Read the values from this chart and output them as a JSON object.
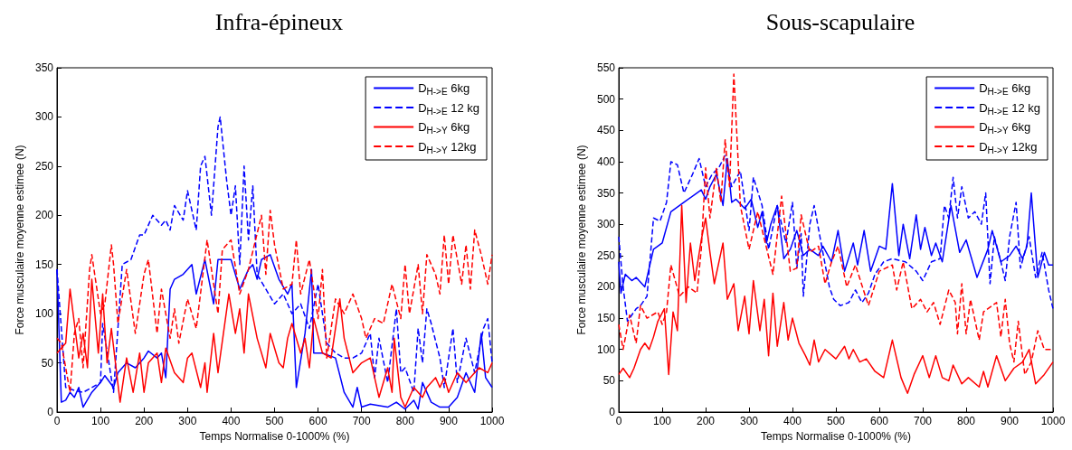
{
  "chart_data": [
    {
      "type": "line",
      "title": "Infra-épineux",
      "xlabel": "Temps Normalise 0-1000% (%)",
      "ylabel": "Force musculaire moyenne estimee (N)",
      "xlim": [
        0,
        1000
      ],
      "xticks": [
        0,
        100,
        200,
        300,
        400,
        500,
        600,
        700,
        800,
        900,
        1000
      ],
      "ylim": [
        0,
        350
      ],
      "yticks": [
        0,
        50,
        100,
        150,
        200,
        250,
        300,
        350
      ],
      "grid": false,
      "legend": "top right",
      "marker": "none",
      "series": [
        {
          "name": "D$_{H->E}$ 6kg",
          "color": "#0000ff",
          "line_style": "solid",
          "x": [
            0,
            10,
            20,
            30,
            40,
            50,
            60,
            80,
            100,
            110,
            130,
            140,
            160,
            180,
            200,
            210,
            230,
            240,
            250,
            260,
            270,
            290,
            310,
            320,
            340,
            360,
            370,
            400,
            420,
            440,
            450,
            460,
            470,
            490,
            510,
            530,
            540,
            550,
            570,
            585,
            590,
            610,
            640,
            660,
            680,
            690,
            700,
            720,
            760,
            780,
            800,
            820,
            830,
            840,
            860,
            880,
            900,
            920,
            940,
            960,
            975,
            985,
            1000
          ],
          "values": [
            145,
            10,
            12,
            20,
            15,
            25,
            5,
            20,
            30,
            37,
            25,
            40,
            50,
            45,
            55,
            62,
            55,
            60,
            35,
            125,
            135,
            140,
            150,
            120,
            155,
            110,
            155,
            155,
            125,
            145,
            150,
            135,
            155,
            160,
            135,
            120,
            130,
            25,
            80,
            145,
            60,
            60,
            55,
            20,
            5,
            25,
            5,
            8,
            5,
            10,
            3,
            12,
            3,
            30,
            10,
            5,
            5,
            15,
            40,
            20,
            80,
            35,
            25
          ]
        },
        {
          "name": "D$_{H->E}$ 12 kg",
          "color": "#0000ff",
          "line_style": "dashed",
          "x": [
            0,
            20,
            40,
            60,
            80,
            100,
            105,
            130,
            150,
            170,
            190,
            200,
            220,
            240,
            250,
            260,
            270,
            290,
            300,
            320,
            330,
            340,
            355,
            370,
            375,
            390,
            400,
            410,
            420,
            430,
            440,
            450,
            460,
            480,
            500,
            520,
            540,
            560,
            580,
            600,
            620,
            640,
            660,
            680,
            700,
            720,
            730,
            740,
            760,
            780,
            790,
            800,
            820,
            830,
            840,
            850,
            860,
            880,
            890,
            910,
            920,
            940,
            960,
            980,
            990,
            1000
          ],
          "values": [
            145,
            25,
            22,
            20,
            25,
            30,
            90,
            20,
            150,
            155,
            180,
            180,
            200,
            190,
            195,
            185,
            210,
            195,
            225,
            185,
            250,
            260,
            200,
            290,
            300,
            235,
            200,
            230,
            150,
            250,
            175,
            230,
            140,
            125,
            110,
            120,
            100,
            110,
            85,
            130,
            70,
            60,
            55,
            55,
            60,
            80,
            35,
            75,
            30,
            105,
            40,
            45,
            20,
            85,
            50,
            105,
            90,
            55,
            25,
            85,
            30,
            75,
            40,
            85,
            95,
            50
          ]
        },
        {
          "name": "D$_{H->Y}$ 6kg",
          "color": "#ff0000",
          "line_style": "solid",
          "x": [
            0,
            20,
            30,
            40,
            50,
            60,
            70,
            80,
            95,
            105,
            115,
            125,
            145,
            160,
            175,
            190,
            200,
            210,
            230,
            240,
            250,
            270,
            290,
            300,
            310,
            330,
            340,
            345,
            360,
            370,
            395,
            410,
            420,
            430,
            440,
            460,
            480,
            490,
            510,
            520,
            530,
            540,
            560,
            570,
            580,
            590,
            610,
            630,
            650,
            660,
            680,
            700,
            720,
            740,
            760,
            770,
            775,
            790,
            800,
            820,
            840,
            850,
            870,
            880,
            890,
            900,
            920,
            940,
            970,
            990,
            1000
          ],
          "values": [
            60,
            70,
            125,
            90,
            55,
            80,
            45,
            135,
            60,
            120,
            50,
            85,
            10,
            55,
            20,
            60,
            20,
            50,
            60,
            30,
            65,
            40,
            30,
            55,
            60,
            25,
            50,
            20,
            80,
            40,
            120,
            80,
            105,
            60,
            120,
            75,
            45,
            80,
            50,
            45,
            75,
            90,
            60,
            75,
            45,
            95,
            60,
            55,
            115,
            75,
            40,
            50,
            55,
            15,
            45,
            20,
            75,
            15,
            5,
            25,
            15,
            25,
            35,
            25,
            35,
            20,
            40,
            30,
            45,
            40,
            50
          ]
        },
        {
          "name": "D$_{H->Y}$ 12kg",
          "color": "#ff0000",
          "line_style": "dashed",
          "x": [
            0,
            10,
            30,
            40,
            50,
            60,
            75,
            80,
            100,
            110,
            125,
            130,
            140,
            160,
            180,
            200,
            210,
            230,
            240,
            260,
            270,
            280,
            300,
            320,
            345,
            370,
            380,
            400,
            420,
            440,
            470,
            480,
            490,
            500,
            520,
            540,
            550,
            560,
            580,
            600,
            610,
            620,
            640,
            660,
            680,
            700,
            710,
            730,
            750,
            770,
            790,
            800,
            810,
            830,
            840,
            850,
            870,
            880,
            890,
            900,
            910,
            930,
            940,
            950,
            960,
            975,
            990,
            1000
          ],
          "values": [
            75,
            70,
            20,
            80,
            95,
            45,
            145,
            160,
            100,
            110,
            170,
            150,
            90,
            145,
            80,
            140,
            155,
            80,
            125,
            75,
            105,
            70,
            115,
            85,
            175,
            100,
            165,
            175,
            120,
            145,
            200,
            140,
            205,
            170,
            125,
            130,
            175,
            120,
            155,
            95,
            145,
            55,
            115,
            100,
            120,
            95,
            75,
            95,
            90,
            130,
            95,
            150,
            100,
            150,
            100,
            160,
            140,
            120,
            180,
            130,
            180,
            130,
            170,
            125,
            185,
            160,
            130,
            160
          ]
        }
      ]
    },
    {
      "type": "line",
      "title": "Sous-scapulaire",
      "xlabel": "Temps Normalise 0-1000% (%)",
      "ylabel": "Force musculaire moyenne estimee (N)",
      "xlim": [
        0,
        1000
      ],
      "xticks": [
        0,
        100,
        200,
        300,
        400,
        500,
        600,
        700,
        800,
        900,
        1000
      ],
      "ylim": [
        0,
        550
      ],
      "yticks": [
        0,
        50,
        100,
        150,
        200,
        250,
        300,
        350,
        400,
        450,
        500,
        550
      ],
      "grid": false,
      "legend": "top right",
      "marker": "none",
      "series": [
        {
          "name": "D$_{H->E}$ 6kg",
          "color": "#0000ff",
          "line_style": "solid",
          "x": [
            0,
            5,
            15,
            30,
            40,
            60,
            80,
            100,
            120,
            140,
            150,
            180,
            190,
            200,
            210,
            225,
            240,
            250,
            260,
            270,
            290,
            305,
            320,
            330,
            340,
            350,
            365,
            380,
            395,
            410,
            425,
            440,
            460,
            470,
            490,
            505,
            520,
            540,
            550,
            565,
            580,
            600,
            615,
            630,
            645,
            655,
            670,
            685,
            695,
            705,
            720,
            730,
            745,
            765,
            785,
            800,
            825,
            850,
            860,
            880,
            900,
            915,
            930,
            940,
            950,
            965,
            980,
            990,
            1000
          ],
          "values": [
            240,
            190,
            220,
            210,
            215,
            200,
            260,
            270,
            320,
            330,
            335,
            350,
            355,
            340,
            360,
            380,
            330,
            405,
            335,
            340,
            325,
            340,
            295,
            320,
            270,
            300,
            330,
            245,
            260,
            290,
            250,
            260,
            250,
            265,
            240,
            290,
            225,
            270,
            235,
            290,
            225,
            265,
            260,
            365,
            250,
            300,
            245,
            315,
            260,
            295,
            250,
            270,
            240,
            330,
            255,
            275,
            215,
            260,
            290,
            240,
            250,
            265,
            245,
            265,
            350,
            215,
            255,
            235,
            235
          ]
        },
        {
          "name": "D$_{H->E}$ 12 kg",
          "color": "#0000ff",
          "line_style": "dashed",
          "x": [
            0,
            10,
            20,
            40,
            50,
            65,
            80,
            95,
            110,
            120,
            135,
            150,
            170,
            185,
            200,
            215,
            230,
            245,
            260,
            280,
            300,
            310,
            330,
            345,
            365,
            385,
            400,
            410,
            420,
            425,
            440,
            450,
            470,
            485,
            495,
            510,
            530,
            545,
            560,
            575,
            590,
            610,
            630,
            660,
            685,
            700,
            720,
            740,
            750,
            760,
            770,
            780,
            790,
            805,
            820,
            835,
            845,
            855,
            865,
            880,
            890,
            900,
            915,
            925,
            945,
            960,
            975,
            990,
            1000
          ],
          "values": [
            280,
            200,
            145,
            165,
            170,
            185,
            310,
            305,
            335,
            400,
            395,
            350,
            380,
            405,
            360,
            380,
            390,
            410,
            360,
            385,
            290,
            375,
            330,
            260,
            330,
            270,
            335,
            230,
            285,
            185,
            300,
            330,
            255,
            200,
            180,
            170,
            175,
            195,
            175,
            190,
            220,
            240,
            245,
            240,
            225,
            210,
            240,
            245,
            330,
            310,
            375,
            310,
            360,
            310,
            320,
            300,
            350,
            205,
            280,
            240,
            210,
            280,
            335,
            230,
            280,
            215,
            255,
            195,
            165
          ]
        },
        {
          "name": "D$_{H->Y}$ 6kg",
          "color": "#ff0000",
          "line_style": "solid",
          "x": [
            0,
            10,
            25,
            35,
            50,
            60,
            70,
            80,
            90,
            105,
            115,
            125,
            135,
            145,
            155,
            165,
            175,
            190,
            200,
            210,
            220,
            240,
            250,
            265,
            275,
            290,
            300,
            310,
            325,
            335,
            345,
            355,
            365,
            380,
            390,
            400,
            415,
            430,
            440,
            450,
            460,
            475,
            500,
            520,
            530,
            540,
            555,
            570,
            590,
            610,
            630,
            650,
            665,
            680,
            700,
            715,
            730,
            745,
            760,
            770,
            790,
            805,
            830,
            840,
            850,
            870,
            890,
            910,
            930,
            945,
            960,
            980,
            1000
          ],
          "values": [
            60,
            70,
            55,
            70,
            100,
            110,
            100,
            120,
            145,
            165,
            60,
            160,
            130,
            330,
            175,
            270,
            210,
            275,
            310,
            255,
            205,
            270,
            180,
            205,
            130,
            185,
            125,
            210,
            130,
            180,
            90,
            190,
            105,
            175,
            115,
            150,
            110,
            90,
            75,
            115,
            80,
            100,
            85,
            105,
            85,
            100,
            80,
            85,
            65,
            55,
            115,
            55,
            30,
            60,
            90,
            55,
            90,
            55,
            50,
            75,
            45,
            55,
            40,
            65,
            40,
            90,
            50,
            70,
            80,
            100,
            45,
            60,
            80
          ]
        },
        {
          "name": "D$_{H->Y}$ 12kg",
          "color": "#ff0000",
          "line_style": "dashed",
          "x": [
            0,
            10,
            25,
            40,
            50,
            65,
            90,
            100,
            110,
            120,
            140,
            160,
            180,
            190,
            200,
            210,
            225,
            235,
            245,
            255,
            265,
            280,
            300,
            320,
            355,
            375,
            395,
            410,
            420,
            440,
            460,
            475,
            490,
            505,
            525,
            545,
            575,
            600,
            630,
            640,
            655,
            675,
            695,
            710,
            725,
            740,
            760,
            775,
            780,
            790,
            800,
            810,
            830,
            840,
            870,
            880,
            890,
            900,
            910,
            920,
            935,
            950,
            965,
            980,
            1000
          ],
          "values": [
            140,
            100,
            155,
            110,
            170,
            150,
            160,
            140,
            160,
            235,
            185,
            200,
            190,
            260,
            390,
            310,
            390,
            335,
            435,
            360,
            540,
            330,
            260,
            320,
            220,
            345,
            225,
            230,
            315,
            255,
            265,
            205,
            240,
            265,
            200,
            235,
            170,
            225,
            235,
            195,
            240,
            165,
            180,
            160,
            175,
            140,
            195,
            175,
            125,
            205,
            125,
            180,
            115,
            160,
            175,
            120,
            180,
            110,
            80,
            145,
            60,
            80,
            130,
            100,
            100
          ]
        }
      ]
    }
  ]
}
